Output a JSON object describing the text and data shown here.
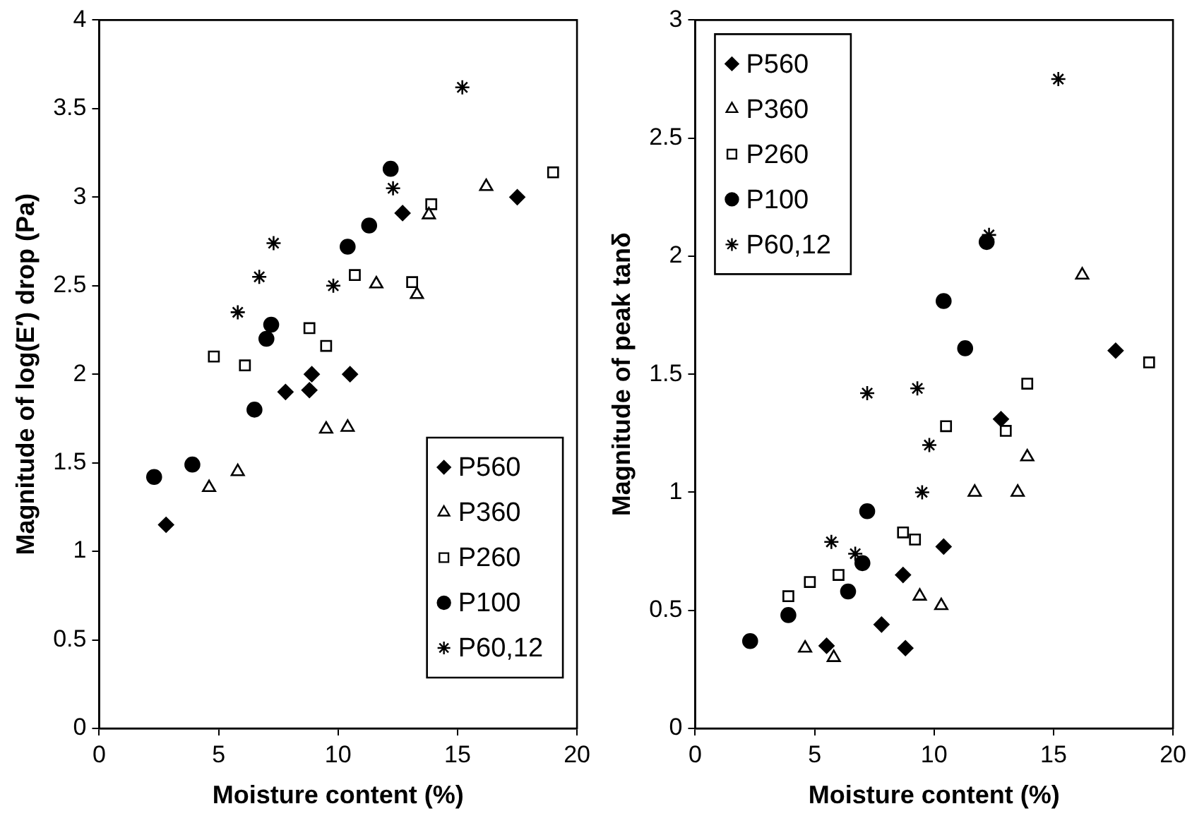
{
  "chart_data": [
    {
      "type": "scatter",
      "xlabel": "Moisture content (%)",
      "ylabel": "Magnitude of log(E′) drop (Pa)",
      "xlim": [
        0,
        20
      ],
      "xticks": [
        0,
        5,
        10,
        15,
        20
      ],
      "ylim": [
        0,
        4
      ],
      "yticks": [
        0,
        0.5,
        1,
        1.5,
        2,
        2.5,
        3,
        3.5,
        4
      ],
      "grid": false,
      "legend": "bottom right",
      "series": [
        {
          "name": "P560",
          "color": "#000000",
          "marker": "diamond",
          "x": [
            2.8,
            7.8,
            8.8,
            8.9,
            10.5,
            12.7,
            17.5
          ],
          "values": [
            1.15,
            1.9,
            1.91,
            2.0,
            2.0,
            2.91,
            3.0
          ]
        },
        {
          "name": "P360",
          "color": "#000000",
          "marker": "triangle",
          "x": [
            4.6,
            5.8,
            9.5,
            10.4,
            11.6,
            13.3,
            13.8,
            16.2
          ],
          "values": [
            1.36,
            1.45,
            1.69,
            1.7,
            2.51,
            2.45,
            2.9,
            3.06
          ]
        },
        {
          "name": "P260",
          "color": "#000000",
          "marker": "square",
          "x": [
            4.8,
            6.1,
            8.8,
            9.5,
            10.7,
            13.1,
            13.9,
            19.0
          ],
          "values": [
            2.1,
            2.05,
            2.26,
            2.16,
            2.56,
            2.52,
            2.96,
            3.14
          ]
        },
        {
          "name": "P100",
          "color": "#000000",
          "marker": "circle",
          "x": [
            2.3,
            3.9,
            6.5,
            7.0,
            7.2,
            10.4,
            11.3,
            12.2
          ],
          "values": [
            1.42,
            1.49,
            1.8,
            2.2,
            2.28,
            2.72,
            2.84,
            3.16
          ]
        },
        {
          "name": "P60,12",
          "color": "#000000",
          "marker": "cross",
          "x": [
            5.8,
            6.7,
            7.3,
            9.8,
            12.3,
            15.2
          ],
          "values": [
            2.35,
            2.55,
            2.74,
            2.5,
            3.05,
            3.62
          ]
        }
      ]
    },
    {
      "type": "scatter",
      "xlabel": "Moisture content (%)",
      "ylabel": "Magnitude of peak tanδ",
      "xlim": [
        0,
        20
      ],
      "xticks": [
        0,
        5,
        10,
        15,
        20
      ],
      "ylim": [
        0,
        3
      ],
      "yticks": [
        0,
        0.5,
        1,
        1.5,
        2,
        2.5,
        3
      ],
      "grid": false,
      "legend": "top left",
      "series": [
        {
          "name": "P560",
          "color": "#000000",
          "marker": "diamond",
          "x": [
            5.5,
            7.8,
            8.7,
            8.8,
            10.4,
            12.8,
            17.6
          ],
          "values": [
            0.35,
            0.44,
            0.65,
            0.34,
            0.77,
            1.31,
            1.6
          ]
        },
        {
          "name": "P360",
          "color": "#000000",
          "marker": "triangle",
          "x": [
            4.6,
            5.8,
            9.4,
            10.3,
            11.7,
            13.5,
            13.9,
            16.2
          ],
          "values": [
            0.34,
            0.3,
            0.56,
            0.52,
            1.0,
            1.0,
            1.15,
            1.92
          ]
        },
        {
          "name": "P260",
          "color": "#000000",
          "marker": "square",
          "x": [
            3.9,
            4.8,
            6.0,
            8.7,
            9.2,
            10.5,
            13.0,
            13.9,
            19.0
          ],
          "values": [
            0.56,
            0.62,
            0.65,
            0.83,
            0.8,
            1.28,
            1.26,
            1.46,
            1.55
          ]
        },
        {
          "name": "P100",
          "color": "#000000",
          "marker": "circle",
          "x": [
            2.3,
            3.9,
            6.4,
            7.0,
            7.2,
            10.4,
            11.3,
            12.2
          ],
          "values": [
            0.37,
            0.48,
            0.58,
            0.7,
            0.92,
            1.81,
            1.61,
            2.06
          ]
        },
        {
          "name": "P60,12",
          "color": "#000000",
          "marker": "cross",
          "x": [
            5.7,
            6.7,
            7.2,
            9.3,
            9.5,
            9.8,
            12.3,
            15.2
          ],
          "values": [
            0.79,
            0.74,
            1.42,
            1.44,
            1.0,
            1.2,
            2.09,
            2.75
          ]
        }
      ]
    }
  ]
}
